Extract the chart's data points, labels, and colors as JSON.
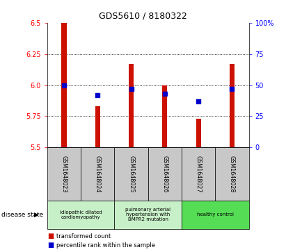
{
  "title": "GDS5610 / 8180322",
  "samples": [
    "GSM1648023",
    "GSM1648024",
    "GSM1648025",
    "GSM1648026",
    "GSM1648027",
    "GSM1648028"
  ],
  "red_values": [
    6.5,
    5.83,
    6.17,
    6.0,
    5.73,
    6.17
  ],
  "blue_values": [
    50,
    42,
    47,
    43,
    37,
    47
  ],
  "ylim_left": [
    5.5,
    6.5
  ],
  "ylim_right": [
    0,
    100
  ],
  "yticks_left": [
    5.5,
    5.75,
    6.0,
    6.25,
    6.5
  ],
  "yticks_right": [
    0,
    25,
    50,
    75,
    100
  ],
  "ytick_labels_right": [
    "0",
    "25",
    "50",
    "75",
    "100%"
  ],
  "bar_color": "#cc1100",
  "dot_color": "#0000cc",
  "bg_plot": "#ffffff",
  "legend_red": "transformed count",
  "legend_blue": "percentile rank within the sample",
  "group_colors": [
    "#c8f0c8",
    "#c8f0c8",
    "#55dd55"
  ],
  "group_labels": [
    "idiopathic dilated\ncardiomyopathy",
    "pulmonary arterial\nhypertension with\nBMPR2 mutation",
    "healthy control"
  ],
  "group_ranges": [
    [
      0,
      1
    ],
    [
      2,
      3
    ],
    [
      4,
      5
    ]
  ],
  "sample_bg": "#c8c8c8",
  "bar_width": 0.15
}
